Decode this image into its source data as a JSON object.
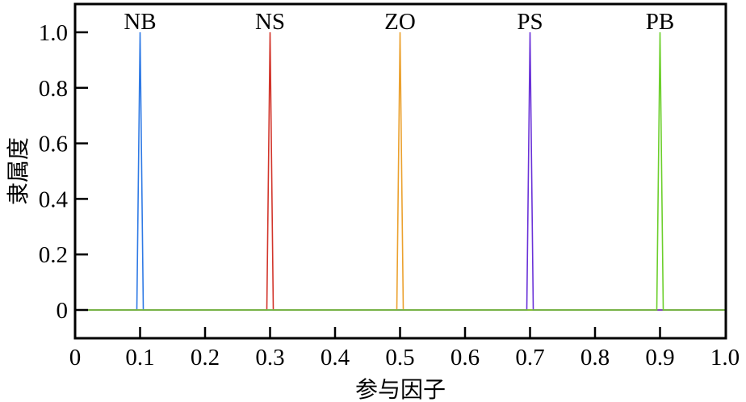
{
  "chart_data": {
    "type": "line",
    "title": "",
    "xlabel": "参与因子",
    "ylabel": "隶属度",
    "xlim": [
      0,
      1.0
    ],
    "ylim": [
      -0.1,
      1.1
    ],
    "grid": false,
    "legend_position": "none (series labels placed above peaks)",
    "x_ticks": [
      "0",
      "0.1",
      "0.2",
      "0.3",
      "0.4",
      "0.5",
      "0.6",
      "0.7",
      "0.8",
      "0.9",
      "1.0"
    ],
    "y_ticks": [
      "0",
      "0.2",
      "0.4",
      "0.6",
      "0.8",
      "1.0"
    ],
    "series": [
      {
        "name": "NB",
        "color": "#2f7ae5",
        "x": [
          0,
          0.095,
          0.1,
          0.105,
          1.0
        ],
        "y": [
          0,
          0,
          1.0,
          0,
          0
        ]
      },
      {
        "name": "NS",
        "color": "#d2352b",
        "x": [
          0,
          0.295,
          0.3,
          0.305,
          1.0
        ],
        "y": [
          0,
          0,
          1.0,
          0,
          0
        ]
      },
      {
        "name": "ZO",
        "color": "#eba12e",
        "x": [
          0,
          0.495,
          0.5,
          0.505,
          1.0
        ],
        "y": [
          0,
          0,
          1.0,
          0,
          0
        ]
      },
      {
        "name": "PS",
        "color": "#6a32d8",
        "x": [
          0,
          0.695,
          0.7,
          0.705,
          1.0
        ],
        "y": [
          0,
          0,
          1.0,
          0,
          0
        ]
      },
      {
        "name": "PB",
        "color": "#6ccf2c",
        "x": [
          0,
          0.895,
          0.9,
          0.905,
          1.0
        ],
        "y": [
          0,
          0,
          1.0,
          0,
          0
        ]
      }
    ]
  }
}
